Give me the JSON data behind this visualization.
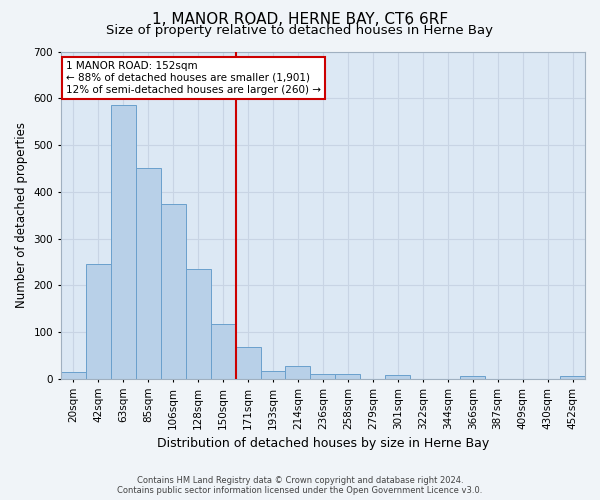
{
  "title": "1, MANOR ROAD, HERNE BAY, CT6 6RF",
  "subtitle": "Size of property relative to detached houses in Herne Bay",
  "xlabel": "Distribution of detached houses by size in Herne Bay",
  "ylabel": "Number of detached properties",
  "categories": [
    "20sqm",
    "42sqm",
    "63sqm",
    "85sqm",
    "106sqm",
    "128sqm",
    "150sqm",
    "171sqm",
    "193sqm",
    "214sqm",
    "236sqm",
    "258sqm",
    "279sqm",
    "301sqm",
    "322sqm",
    "344sqm",
    "366sqm",
    "387sqm",
    "409sqm",
    "430sqm",
    "452sqm"
  ],
  "values": [
    15,
    245,
    585,
    450,
    375,
    235,
    118,
    68,
    17,
    28,
    11,
    10,
    0,
    9,
    0,
    0,
    7,
    0,
    0,
    0,
    6
  ],
  "bar_color": "#b8d0e8",
  "bar_edge_color": "#6aa0cc",
  "grid_color": "#c8d4e4",
  "background_color": "#dce8f4",
  "vline_color": "#cc0000",
  "annotation_text": "1 MANOR ROAD: 152sqm\n← 88% of detached houses are smaller (1,901)\n12% of semi-detached houses are larger (260) →",
  "annotation_box_color": "#ffffff",
  "annotation_box_edge": "#cc0000",
  "ylim": [
    0,
    700
  ],
  "yticks": [
    0,
    100,
    200,
    300,
    400,
    500,
    600,
    700
  ],
  "footer_line1": "Contains HM Land Registry data © Crown copyright and database right 2024.",
  "footer_line2": "Contains public sector information licensed under the Open Government Licence v3.0.",
  "title_fontsize": 11,
  "subtitle_fontsize": 9.5,
  "tick_fontsize": 7.5,
  "ylabel_fontsize": 8.5,
  "xlabel_fontsize": 9,
  "footer_fontsize": 6,
  "annotation_fontsize": 7.5
}
